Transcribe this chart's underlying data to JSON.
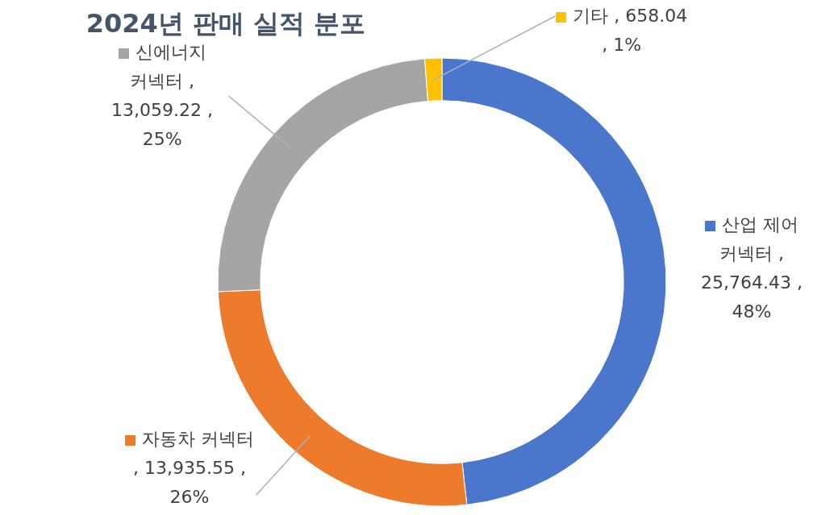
{
  "chart_data": {
    "type": "donut",
    "title": "2024년 판매 실적 분포",
    "categories": [
      "산업 제어 커넥터",
      "자동차 커넥터",
      "신에너지 커넥터",
      "기타"
    ],
    "values": [
      25764.43,
      13935.55,
      13059.22,
      658.04
    ],
    "legend": "right",
    "colors": [
      "#4a76cc",
      "#ee7b2c",
      "#a5a5a5",
      "#ffc000"
    ],
    "value_labels": [
      ", 25,764.43 , 48%",
      ", 13,935.55 , 26%",
      ", 13,059.22 , 25%",
      ", 658.04 , 1%"
    ]
  }
}
